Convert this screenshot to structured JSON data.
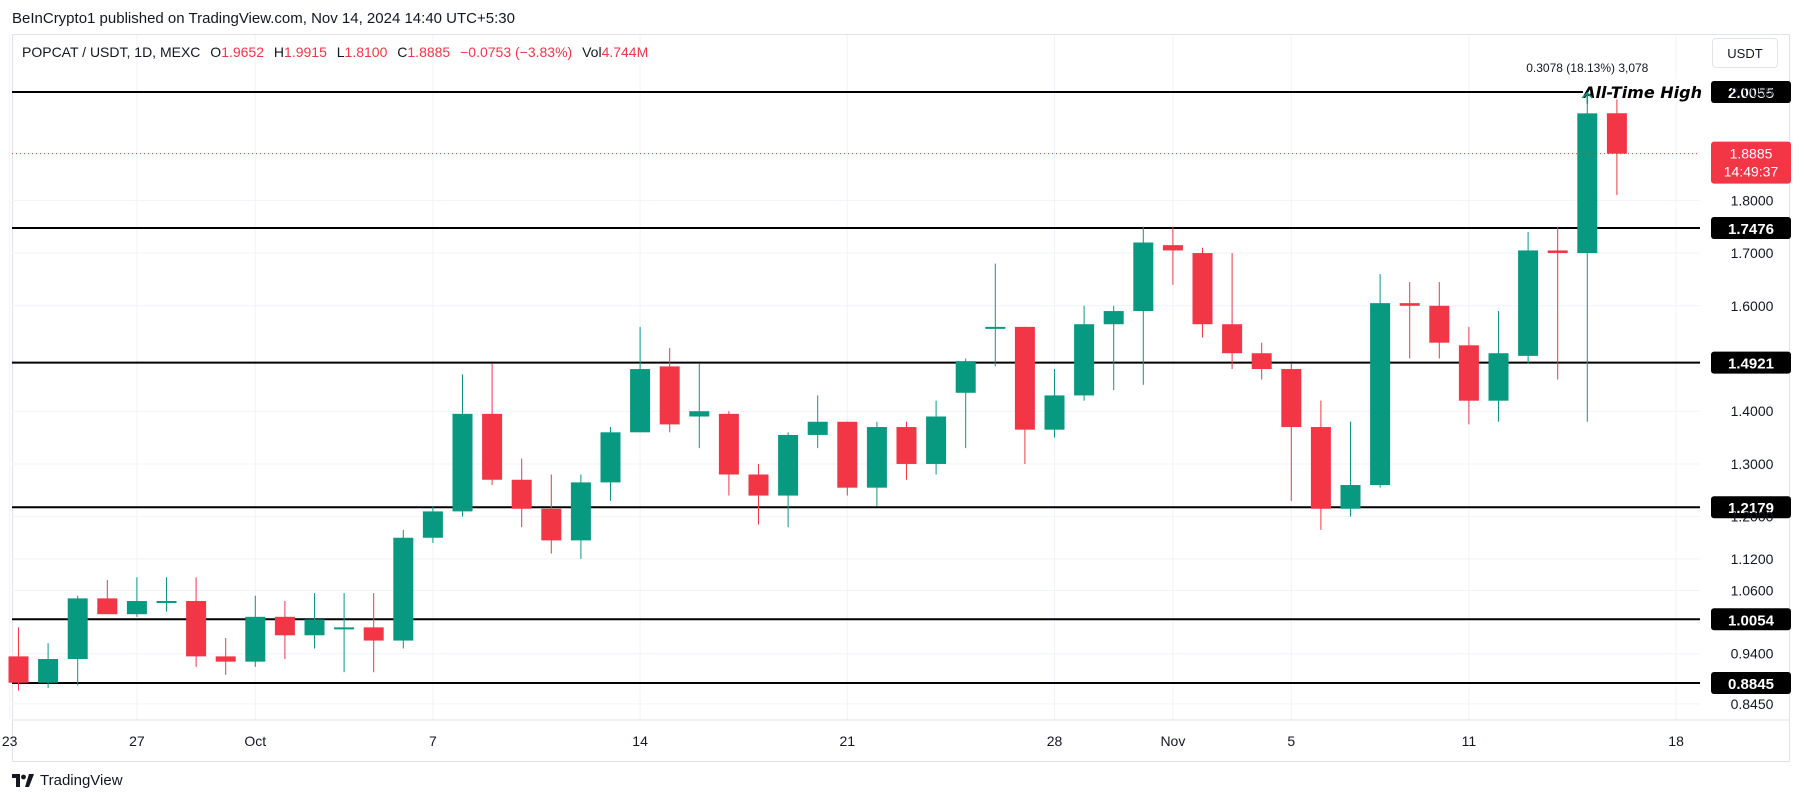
{
  "header": {
    "published": "BeInCrypto1 published on TradingView.com, Nov 14, 2024 14:40 UTC+5:30"
  },
  "legend": {
    "symbol": "POPCAT / USDT, 1D, MEXC",
    "open_label": "O",
    "open": "1.9652",
    "high_label": "H",
    "high": "1.9915",
    "low_label": "L",
    "low": "1.8100",
    "close_label": "C",
    "close": "1.8885",
    "change": "−0.0753 (−3.83%)",
    "vol_label": "Vol",
    "vol": "4.744M"
  },
  "currency_button": "USDT",
  "footer": {
    "brand": "TradingView"
  },
  "colors": {
    "up": "#089981",
    "down": "#f23645",
    "line": "#000000",
    "grid": "#f0f3fa"
  },
  "chart_data": {
    "type": "candlestick",
    "ylim": [
      0.82,
      2.08
    ],
    "y_ticks": [
      "2.0055",
      "1.8000",
      "1.7000",
      "1.6000",
      "1.4000",
      "1.3000",
      "1.2000",
      "1.1200",
      "1.0600",
      "0.9400",
      "0.8450"
    ],
    "x_ticks": [
      {
        "label": "23",
        "i": -0.3
      },
      {
        "label": "27",
        "i": 4
      },
      {
        "label": "Oct",
        "i": 8
      },
      {
        "label": "7",
        "i": 14
      },
      {
        "label": "14",
        "i": 21
      },
      {
        "label": "21",
        "i": 28
      },
      {
        "label": "28",
        "i": 35
      },
      {
        "label": "Nov",
        "i": 39
      },
      {
        "label": "5",
        "i": 43
      },
      {
        "label": "11",
        "i": 49
      },
      {
        "label": "18",
        "i": 56
      }
    ],
    "levels": [
      {
        "value": 2.0055,
        "label": "2.0055",
        "note": "All-Time High"
      },
      {
        "value": 1.7476,
        "label": "1.7476"
      },
      {
        "value": 1.4921,
        "label": "1.4921"
      },
      {
        "value": 1.2179,
        "label": "1.2179"
      },
      {
        "value": 1.0054,
        "label": "1.0054"
      },
      {
        "value": 0.8845,
        "label": "0.8845"
      }
    ],
    "last_price": {
      "value": 1.8885,
      "label": "1.8885",
      "countdown": "14:49:37"
    },
    "measure": {
      "label": "0.3078 (18.13%) 3,078"
    },
    "candles": [
      [
        0.935,
        0.99,
        0.87,
        0.885
      ],
      [
        0.885,
        0.96,
        0.875,
        0.93
      ],
      [
        0.93,
        1.05,
        0.88,
        1.045
      ],
      [
        1.045,
        1.08,
        1.02,
        1.015
      ],
      [
        1.015,
        1.085,
        1.01,
        1.04
      ],
      [
        1.04,
        1.085,
        1.02,
        1.04
      ],
      [
        1.04,
        1.085,
        0.915,
        0.935
      ],
      [
        0.935,
        0.97,
        0.9,
        0.925
      ],
      [
        0.925,
        1.05,
        0.915,
        1.01
      ],
      [
        1.01,
        1.04,
        0.93,
        0.975
      ],
      [
        0.975,
        1.055,
        0.95,
        1.005
      ],
      [
        0.99,
        1.055,
        0.905,
        0.99
      ],
      [
        0.99,
        1.055,
        0.905,
        0.965
      ],
      [
        0.965,
        1.175,
        0.95,
        1.16
      ],
      [
        1.16,
        1.22,
        1.15,
        1.21
      ],
      [
        1.21,
        1.47,
        1.2,
        1.395
      ],
      [
        1.395,
        1.49,
        1.26,
        1.27
      ],
      [
        1.27,
        1.31,
        1.18,
        1.215
      ],
      [
        1.215,
        1.28,
        1.13,
        1.155
      ],
      [
        1.155,
        1.28,
        1.12,
        1.265
      ],
      [
        1.265,
        1.37,
        1.23,
        1.36
      ],
      [
        1.36,
        1.56,
        1.36,
        1.48
      ],
      [
        1.485,
        1.52,
        1.36,
        1.375
      ],
      [
        1.39,
        1.49,
        1.33,
        1.4
      ],
      [
        1.395,
        1.4,
        1.24,
        1.28
      ],
      [
        1.28,
        1.3,
        1.185,
        1.24
      ],
      [
        1.24,
        1.36,
        1.18,
        1.355
      ],
      [
        1.355,
        1.43,
        1.33,
        1.38
      ],
      [
        1.38,
        1.38,
        1.24,
        1.255
      ],
      [
        1.255,
        1.38,
        1.22,
        1.37
      ],
      [
        1.37,
        1.38,
        1.27,
        1.3
      ],
      [
        1.3,
        1.42,
        1.28,
        1.39
      ],
      [
        1.435,
        1.5,
        1.33,
        1.495
      ],
      [
        1.56,
        1.68,
        1.485,
        1.56
      ],
      [
        1.56,
        1.56,
        1.3,
        1.365
      ],
      [
        1.365,
        1.48,
        1.35,
        1.43
      ],
      [
        1.43,
        1.6,
        1.42,
        1.565
      ],
      [
        1.565,
        1.6,
        1.44,
        1.59
      ],
      [
        1.59,
        1.75,
        1.45,
        1.72
      ],
      [
        1.715,
        1.75,
        1.64,
        1.705
      ],
      [
        1.7,
        1.71,
        1.54,
        1.565
      ],
      [
        1.565,
        1.7,
        1.48,
        1.51
      ],
      [
        1.51,
        1.53,
        1.46,
        1.48
      ],
      [
        1.48,
        1.49,
        1.23,
        1.37
      ],
      [
        1.37,
        1.42,
        1.175,
        1.215
      ],
      [
        1.215,
        1.38,
        1.2,
        1.26
      ],
      [
        1.26,
        1.66,
        1.255,
        1.605
      ],
      [
        1.605,
        1.645,
        1.5,
        1.6
      ],
      [
        1.6,
        1.645,
        1.5,
        1.53
      ],
      [
        1.525,
        1.56,
        1.375,
        1.42
      ],
      [
        1.42,
        1.59,
        1.38,
        1.51
      ],
      [
        1.505,
        1.74,
        1.49,
        1.705
      ],
      [
        1.705,
        1.75,
        1.46,
        1.7
      ],
      [
        1.7,
        2.005,
        1.38,
        1.965
      ],
      [
        1.9652,
        1.9915,
        1.81,
        1.8885
      ]
    ]
  }
}
